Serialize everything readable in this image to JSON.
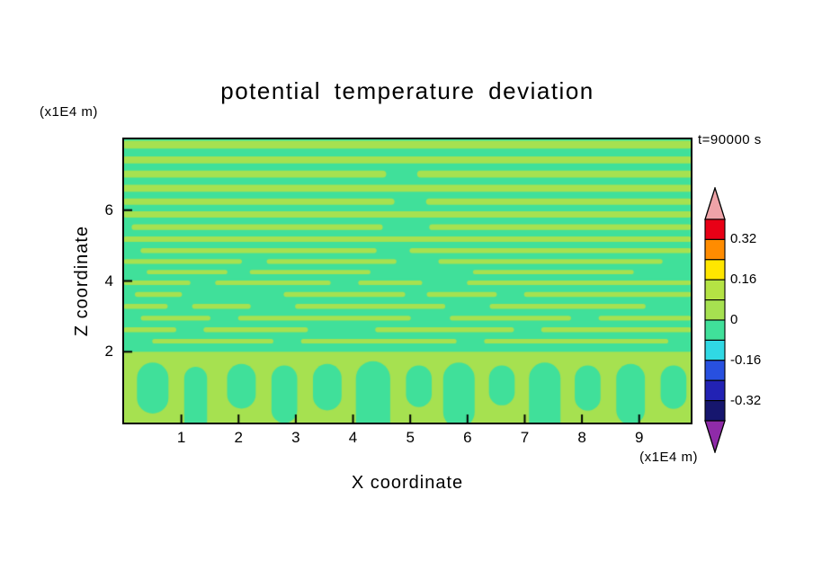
{
  "chart_data": {
    "type": "contour",
    "title": "potential temperature deviation",
    "time_label": "t=90000 s",
    "xlabel": "X coordinate",
    "ylabel": "Z coordinate",
    "x_unit": "(x1E4 m)",
    "z_unit": "(x1E4 m)",
    "xlim": [
      0,
      9.9
    ],
    "zlim": [
      0,
      8
    ],
    "x_ticks": [
      1,
      2,
      3,
      4,
      5,
      6,
      7,
      8,
      9
    ],
    "z_ticks": [
      2,
      4,
      6
    ],
    "colorbar": {
      "labels": [
        "0.32",
        "0.16",
        "0",
        "-0.16",
        "-0.32"
      ],
      "over_color": "#EFA3A8",
      "under_color": "#8F2BA8",
      "segments": [
        {
          "from": 0.32,
          "to": 0.4,
          "color": "#E80016"
        },
        {
          "from": 0.24,
          "to": 0.32,
          "color": "#FF8C00"
        },
        {
          "from": 0.16,
          "to": 0.24,
          "color": "#FFE600"
        },
        {
          "from": 0.08,
          "to": 0.16,
          "color": "#B4E344"
        },
        {
          "from": 0,
          "to": 0.08,
          "color": "#A6E150"
        },
        {
          "from": -0.08,
          "to": 0,
          "color": "#40E09A"
        },
        {
          "from": -0.16,
          "to": -0.08,
          "color": "#30D8E4"
        },
        {
          "from": -0.24,
          "to": -0.16,
          "color": "#2850E0"
        },
        {
          "from": -0.32,
          "to": -0.24,
          "color": "#2222B4"
        },
        {
          "from": -0.4,
          "to": -0.32,
          "color": "#16166E"
        }
      ]
    },
    "field": {
      "positive_color": "#A6E150",
      "negative_color": "#40E09A",
      "mixed_layer_top": 2.0,
      "stripes": [
        [
          7.85,
          0.22,
          [
            [
              0,
              9.9
            ]
          ]
        ],
        [
          7.42,
          0.2,
          [
            [
              0,
              9.9
            ]
          ]
        ],
        [
          7.02,
          0.2,
          [
            [
              0,
              4.55
            ],
            [
              5.15,
              9.9
            ]
          ]
        ],
        [
          6.62,
          0.2,
          [
            [
              0,
              9.9
            ]
          ]
        ],
        [
          6.24,
          0.18,
          [
            [
              0,
              4.7
            ],
            [
              5.3,
              9.9
            ]
          ]
        ],
        [
          5.88,
          0.18,
          [
            [
              0,
              9.9
            ]
          ]
        ],
        [
          5.52,
          0.16,
          [
            [
              0.15,
              4.5
            ],
            [
              5.35,
              9.9
            ]
          ]
        ],
        [
          5.18,
          0.15,
          [
            [
              0,
              9.9
            ]
          ]
        ],
        [
          4.86,
          0.14,
          [
            [
              0.3,
              4.4
            ],
            [
              5.0,
              9.9
            ]
          ]
        ],
        [
          4.55,
          0.13,
          [
            [
              0,
              2.05
            ],
            [
              2.5,
              4.75
            ],
            [
              5.5,
              9.4
            ]
          ]
        ],
        [
          4.25,
          0.12,
          [
            [
              0.4,
              1.8
            ],
            [
              2.2,
              4.3
            ],
            [
              6.1,
              8.9
            ]
          ]
        ],
        [
          3.95,
          0.13,
          [
            [
              0,
              1.15
            ],
            [
              1.6,
              3.6
            ],
            [
              4.1,
              5.2
            ],
            [
              6.0,
              9.9
            ]
          ]
        ],
        [
          3.62,
          0.14,
          [
            [
              0.2,
              1.0
            ],
            [
              2.8,
              4.9
            ],
            [
              5.3,
              6.5
            ],
            [
              7.0,
              9.9
            ]
          ]
        ],
        [
          3.28,
          0.14,
          [
            [
              0,
              0.75
            ],
            [
              1.2,
              2.2
            ],
            [
              3.0,
              5.6
            ],
            [
              6.4,
              9.1
            ]
          ]
        ],
        [
          2.95,
          0.13,
          [
            [
              0.3,
              1.5
            ],
            [
              2.0,
              5.0
            ],
            [
              5.7,
              7.8
            ],
            [
              8.3,
              9.9
            ]
          ]
        ],
        [
          2.62,
          0.14,
          [
            [
              0,
              0.9
            ],
            [
              1.4,
              3.2
            ],
            [
              4.4,
              6.8
            ],
            [
              7.3,
              9.9
            ]
          ]
        ],
        [
          2.3,
          0.13,
          [
            [
              0.5,
              2.6
            ],
            [
              3.1,
              5.8
            ],
            [
              6.3,
              9.5
            ]
          ]
        ]
      ],
      "plumes": [
        [
          0.5,
          0.55,
          1.25,
          0.7
        ],
        [
          1.25,
          0.4,
          1.25,
          0.05
        ],
        [
          2.05,
          0.5,
          1.25,
          0.8
        ],
        [
          2.8,
          0.45,
          1.25,
          0.35
        ],
        [
          3.55,
          0.5,
          1.25,
          0.75
        ],
        [
          4.35,
          0.6,
          1.25,
          0.05
        ],
        [
          5.15,
          0.45,
          1.25,
          0.8
        ],
        [
          5.85,
          0.55,
          1.25,
          0.3
        ],
        [
          6.6,
          0.45,
          1.25,
          0.85
        ],
        [
          7.35,
          0.55,
          1.25,
          0.05
        ],
        [
          8.1,
          0.45,
          1.25,
          0.7
        ],
        [
          8.85,
          0.5,
          1.25,
          0.35
        ],
        [
          9.6,
          0.45,
          1.25,
          0.75
        ]
      ]
    }
  }
}
